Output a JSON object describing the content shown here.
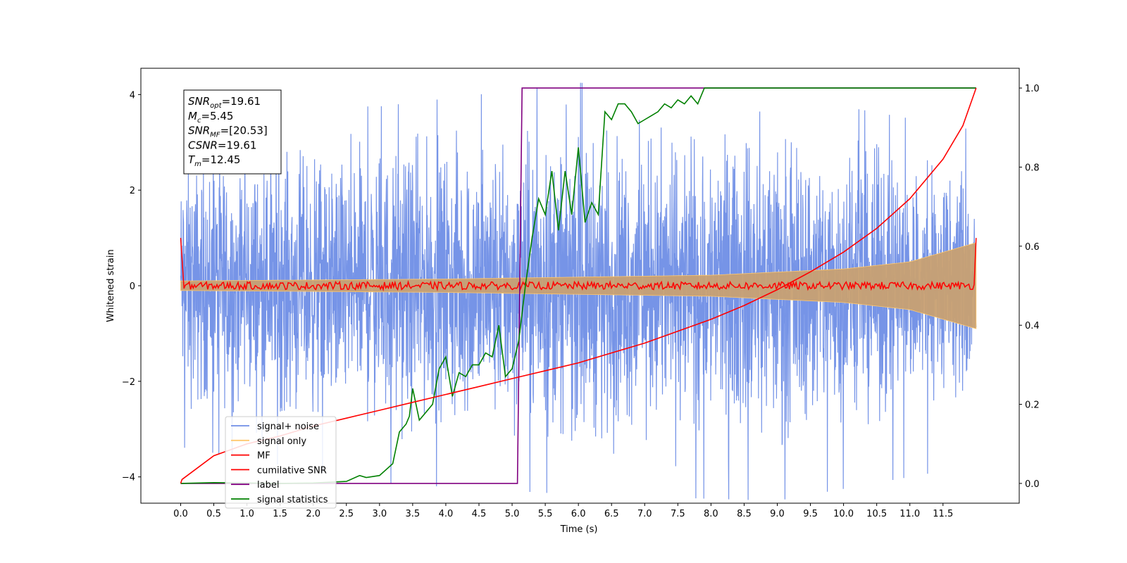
{
  "chart_data": {
    "type": "line",
    "title": "",
    "xlabel": "Time (s)",
    "ylabel": "Whitened strain",
    "xlim": [
      -0.6,
      12.65
    ],
    "ylim": [
      -4.55,
      4.55
    ],
    "y2lim": [
      -0.05,
      1.05
    ],
    "x_ticks": [
      0.0,
      0.5,
      1.0,
      1.5,
      2.0,
      2.5,
      3.0,
      3.5,
      4.0,
      4.5,
      5.0,
      5.5,
      6.0,
      6.5,
      7.0,
      7.5,
      8.0,
      8.5,
      9.0,
      9.5,
      10.0,
      10.5,
      11.0,
      11.5
    ],
    "x_tick_labels": [
      "0.0",
      "0.5",
      "1.0",
      "1.5",
      "2.0",
      "2.5",
      "3.0",
      "3.5",
      "4.0",
      "4.5",
      "5.0",
      "5.5",
      "6.0",
      "6.5",
      "7.0",
      "7.5",
      "8.0",
      "8.5",
      "9.0",
      "9.5",
      "10.0",
      "10.5",
      "11.0",
      "11.5"
    ],
    "y_ticks": [
      -4,
      -2,
      0,
      2,
      4
    ],
    "y_tick_labels": [
      "−4",
      "−2",
      "0",
      "2",
      "4"
    ],
    "y2_ticks": [
      0.0,
      0.2,
      0.4,
      0.6,
      0.8,
      1.0
    ],
    "y2_tick_labels": [
      "0.0",
      "0.2",
      "0.4",
      "0.6",
      "0.8",
      "1.0"
    ],
    "grid": false,
    "legend_placement": "lower-left",
    "annotation": [
      {
        "base": "SNR",
        "sub": "opt",
        "value": "=19.61"
      },
      {
        "base": "M",
        "sub": "c",
        "value": "=5.45"
      },
      {
        "base": "SNR",
        "sub": "MF",
        "value": "=[20.53]"
      },
      {
        "base": "CSNR",
        "sub": "",
        "value": "=19.61"
      },
      {
        "base": "T",
        "sub": "m",
        "value": "=12.45"
      }
    ],
    "series": [
      {
        "name": "signal+ noise",
        "color": "#6f8ee6",
        "axis": "left",
        "approx_envelope": [
          [
            0.0,
            -2.7,
            3.0
          ],
          [
            3.0,
            -3.3,
            3.0
          ],
          [
            6.0,
            -3.5,
            3.4
          ],
          [
            9.0,
            -3.6,
            3.2
          ],
          [
            12.0,
            -3.0,
            2.6
          ]
        ]
      },
      {
        "name": "signal only",
        "color": "#ffc86e",
        "axis": "left",
        "approx_amplitude": [
          [
            0.0,
            0.1
          ],
          [
            4.0,
            0.14
          ],
          [
            8.0,
            0.22
          ],
          [
            10.0,
            0.35
          ],
          [
            11.0,
            0.5
          ],
          [
            12.0,
            0.9
          ]
        ]
      },
      {
        "name": "MF",
        "color": "#ff0000",
        "axis": "left",
        "approx_points": [
          [
            0.0,
            1.0
          ],
          [
            0.03,
            0.1
          ],
          [
            6.0,
            0.0
          ],
          [
            11.97,
            0.05
          ],
          [
            12.0,
            1.0
          ]
        ]
      },
      {
        "name": "cumilative SNR",
        "color": "#ff0000",
        "axis": "right",
        "x": [
          0.0,
          0.02,
          0.5,
          1.0,
          1.5,
          2.0,
          2.5,
          3.0,
          3.5,
          4.0,
          4.5,
          5.0,
          5.5,
          6.0,
          6.5,
          7.0,
          7.5,
          8.0,
          8.5,
          9.0,
          9.5,
          10.0,
          10.5,
          11.0,
          11.5,
          11.8,
          12.0
        ],
        "y": [
          0.0,
          0.01,
          0.07,
          0.1,
          0.12,
          0.145,
          0.165,
          0.185,
          0.205,
          0.225,
          0.245,
          0.265,
          0.285,
          0.305,
          0.33,
          0.355,
          0.385,
          0.415,
          0.45,
          0.49,
          0.535,
          0.585,
          0.645,
          0.72,
          0.82,
          0.905,
          1.0
        ]
      },
      {
        "name": "label",
        "color": "#800080",
        "axis": "right",
        "x": [
          0.0,
          5.08,
          5.15,
          12.0
        ],
        "y": [
          0.0,
          0.0,
          1.0,
          1.0
        ]
      },
      {
        "name": "signal statistics",
        "color": "#008000",
        "axis": "right",
        "x": [
          0.0,
          0.5,
          1.0,
          1.5,
          2.0,
          2.5,
          2.7,
          2.8,
          3.0,
          3.2,
          3.3,
          3.4,
          3.45,
          3.5,
          3.6,
          3.7,
          3.8,
          3.9,
          4.0,
          4.1,
          4.2,
          4.3,
          4.4,
          4.5,
          4.6,
          4.7,
          4.8,
          4.9,
          5.0,
          5.1,
          5.2,
          5.3,
          5.4,
          5.5,
          5.6,
          5.7,
          5.8,
          5.9,
          6.0,
          6.1,
          6.2,
          6.3,
          6.4,
          6.5,
          6.6,
          6.7,
          6.8,
          6.9,
          7.0,
          7.1,
          7.2,
          7.3,
          7.4,
          7.5,
          7.6,
          7.7,
          7.8,
          7.9,
          8.0,
          8.1,
          8.2,
          8.5,
          9.0,
          9.5,
          10.0,
          11.0,
          12.0
        ],
        "y": [
          0.0,
          0.002,
          0.001,
          0.0,
          0.001,
          0.005,
          0.02,
          0.015,
          0.02,
          0.05,
          0.13,
          0.15,
          0.17,
          0.24,
          0.16,
          0.18,
          0.2,
          0.29,
          0.32,
          0.22,
          0.28,
          0.27,
          0.3,
          0.3,
          0.33,
          0.32,
          0.4,
          0.27,
          0.29,
          0.36,
          0.5,
          0.62,
          0.72,
          0.68,
          0.79,
          0.64,
          0.79,
          0.68,
          0.85,
          0.66,
          0.71,
          0.68,
          0.94,
          0.92,
          0.96,
          0.96,
          0.94,
          0.91,
          0.92,
          0.93,
          0.94,
          0.96,
          0.95,
          0.97,
          0.96,
          0.98,
          0.96,
          1.0,
          1.0,
          1.0,
          1.0,
          1.0,
          1.0,
          1.0,
          1.0,
          1.0,
          1.0
        ]
      }
    ]
  }
}
